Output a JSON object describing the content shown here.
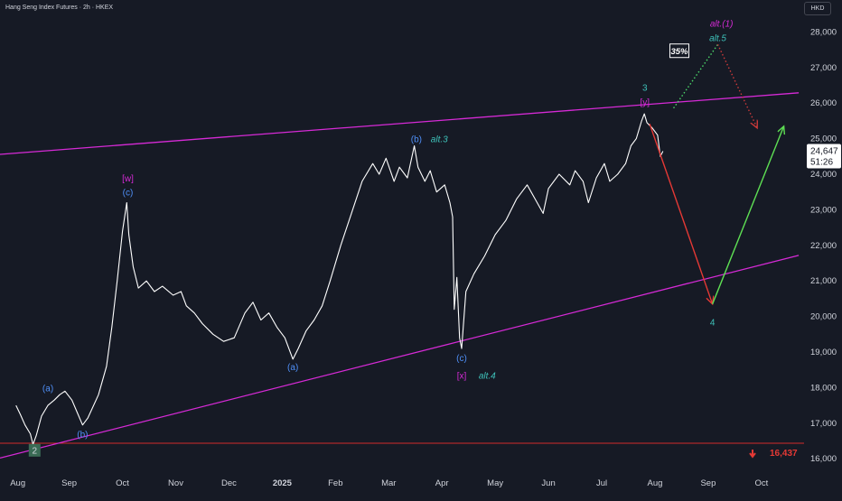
{
  "header": {
    "title": "Hang Seng Index Futures · 2h · HKEX",
    "currency": "HKD"
  },
  "chart_data": {
    "type": "line",
    "xlabel": "",
    "ylabel": "",
    "x_ticks": [
      {
        "label": "Aug",
        "month": 0
      },
      {
        "label": "Sep",
        "month": 1
      },
      {
        "label": "Oct",
        "month": 2
      },
      {
        "label": "Nov",
        "month": 3
      },
      {
        "label": "Dec",
        "month": 4
      },
      {
        "label": "2025",
        "month": 5,
        "bold": true
      },
      {
        "label": "Feb",
        "month": 6
      },
      {
        "label": "Mar",
        "month": 7
      },
      {
        "label": "Apr",
        "month": 8
      },
      {
        "label": "May",
        "month": 9
      },
      {
        "label": "Jun",
        "month": 10
      },
      {
        "label": "Jul",
        "month": 11
      },
      {
        "label": "Aug",
        "month": 12
      },
      {
        "label": "Sep",
        "month": 13
      },
      {
        "label": "Oct",
        "month": 14
      }
    ],
    "y_ticks": [
      16000,
      17000,
      18000,
      19000,
      20000,
      21000,
      22000,
      23000,
      24000,
      25000,
      26000,
      27000,
      28000
    ],
    "y_tick_labels": [
      "16,000",
      "17,000",
      "18,000",
      "19,000",
      "20,000",
      "21,000",
      "22,000",
      "23,000",
      "24,000",
      "25,000",
      "26,000",
      "27,000",
      "28,000"
    ],
    "ylim": [
      15700,
      28900
    ],
    "xlim": [
      -0.3,
      14.8
    ],
    "price": {
      "name": "",
      "points": [
        [
          0.0,
          17500
        ],
        [
          0.08,
          17250
        ],
        [
          0.17,
          16950
        ],
        [
          0.27,
          16700
        ],
        [
          0.32,
          16400
        ],
        [
          0.38,
          16650
        ],
        [
          0.48,
          17200
        ],
        [
          0.6,
          17500
        ],
        [
          0.72,
          17650
        ],
        [
          0.82,
          17800
        ],
        [
          0.92,
          17900
        ],
        [
          1.05,
          17650
        ],
        [
          1.15,
          17300
        ],
        [
          1.25,
          16950
        ],
        [
          1.35,
          17150
        ],
        [
          1.55,
          17800
        ],
        [
          1.7,
          18600
        ],
        [
          1.8,
          19700
        ],
        [
          1.9,
          21000
        ],
        [
          2.0,
          22400
        ],
        [
          2.08,
          23200
        ],
        [
          2.12,
          22300
        ],
        [
          2.2,
          21400
        ],
        [
          2.3,
          20800
        ],
        [
          2.45,
          21000
        ],
        [
          2.6,
          20700
        ],
        [
          2.75,
          20850
        ],
        [
          2.95,
          20600
        ],
        [
          3.1,
          20700
        ],
        [
          3.2,
          20300
        ],
        [
          3.35,
          20100
        ],
        [
          3.5,
          19800
        ],
        [
          3.7,
          19500
        ],
        [
          3.9,
          19300
        ],
        [
          4.1,
          19400
        ],
        [
          4.3,
          20100
        ],
        [
          4.45,
          20400
        ],
        [
          4.6,
          19900
        ],
        [
          4.75,
          20100
        ],
        [
          4.9,
          19700
        ],
        [
          5.05,
          19400
        ],
        [
          5.2,
          18800
        ],
        [
          5.3,
          19100
        ],
        [
          5.45,
          19600
        ],
        [
          5.6,
          19900
        ],
        [
          5.75,
          20300
        ],
        [
          5.9,
          21000
        ],
        [
          6.1,
          22000
        ],
        [
          6.3,
          22900
        ],
        [
          6.5,
          23800
        ],
        [
          6.7,
          24300
        ],
        [
          6.82,
          24000
        ],
        [
          6.95,
          24450
        ],
        [
          7.1,
          23800
        ],
        [
          7.2,
          24200
        ],
        [
          7.35,
          23900
        ],
        [
          7.48,
          24800
        ],
        [
          7.55,
          24200
        ],
        [
          7.68,
          23800
        ],
        [
          7.78,
          24100
        ],
        [
          7.9,
          23500
        ],
        [
          8.05,
          23700
        ],
        [
          8.15,
          23200
        ],
        [
          8.2,
          22800
        ],
        [
          8.23,
          20200
        ],
        [
          8.28,
          21100
        ],
        [
          8.33,
          19400
        ],
        [
          8.37,
          19100
        ],
        [
          8.45,
          20700
        ],
        [
          8.6,
          21200
        ],
        [
          8.8,
          21700
        ],
        [
          9.0,
          22300
        ],
        [
          9.2,
          22700
        ],
        [
          9.4,
          23300
        ],
        [
          9.6,
          23700
        ],
        [
          9.75,
          23300
        ],
        [
          9.9,
          22900
        ],
        [
          10.0,
          23600
        ],
        [
          10.2,
          24000
        ],
        [
          10.4,
          23700
        ],
        [
          10.5,
          24100
        ],
        [
          10.65,
          23800
        ],
        [
          10.75,
          23200
        ],
        [
          10.9,
          23900
        ],
        [
          11.05,
          24300
        ],
        [
          11.15,
          23800
        ],
        [
          11.3,
          24000
        ],
        [
          11.45,
          24300
        ],
        [
          11.55,
          24800
        ],
        [
          11.65,
          25000
        ],
        [
          11.75,
          25500
        ],
        [
          11.8,
          25700
        ],
        [
          11.85,
          25450
        ],
        [
          11.95,
          25300
        ],
        [
          12.05,
          25100
        ],
        [
          12.1,
          24500
        ],
        [
          12.15,
          24647
        ]
      ]
    },
    "channel_lines": [
      {
        "name": "upper-trendline",
        "color": "#d62ad6",
        "points": [
          [
            -0.3,
            24560
          ],
          [
            14.7,
            26290
          ]
        ]
      },
      {
        "name": "lower-trendline",
        "color": "#d62ad6",
        "points": [
          [
            -0.3,
            16020
          ],
          [
            14.7,
            21720
          ]
        ]
      }
    ],
    "horizontal_line": {
      "value": 16437,
      "color": "#d12b2b",
      "label": "16,437"
    },
    "projections": [
      {
        "name": "red-down-projection",
        "color": "#e53935",
        "style": "solid",
        "points": [
          [
            11.9,
            25420
          ],
          [
            13.08,
            20350
          ]
        ]
      },
      {
        "name": "green-up-projection",
        "color": "#5ee054",
        "style": "solid",
        "points": [
          [
            13.08,
            20350
          ],
          [
            14.42,
            25350
          ]
        ]
      },
      {
        "name": "green-dotted-alt",
        "color": "#4cd86a",
        "style": "dotted",
        "points": [
          [
            12.35,
            25860
          ],
          [
            13.18,
            27650
          ]
        ]
      },
      {
        "name": "red-dotted-alt",
        "color": "#cc3a3a",
        "style": "dotted",
        "points": [
          [
            13.18,
            27650
          ],
          [
            13.92,
            25300
          ]
        ]
      }
    ],
    "wave_labels": [
      {
        "text": "2",
        "x": 0.35,
        "y": 16250,
        "color": "#d1d4dc",
        "box": true
      },
      {
        "text": "(a)",
        "x": 0.6,
        "y": 18000,
        "color": "#4f8ff7"
      },
      {
        "text": "(b)",
        "x": 1.25,
        "y": 16700,
        "color": "#4f8ff7"
      },
      {
        "text": "[w]",
        "x": 2.1,
        "y": 23900,
        "color": "#d62ad6"
      },
      {
        "text": "(c)",
        "x": 2.1,
        "y": 23500,
        "color": "#4f8ff7"
      },
      {
        "text": "(a)",
        "x": 5.2,
        "y": 18600,
        "color": "#4f8ff7"
      },
      {
        "text": "(b)",
        "x": 7.52,
        "y": 25000,
        "color": "#4f8ff7"
      },
      {
        "text": "alt.3",
        "x": 7.95,
        "y": 25000,
        "color": "#3ec1b9",
        "italic": true
      },
      {
        "text": "(c)",
        "x": 8.37,
        "y": 18850,
        "color": "#4f8ff7"
      },
      {
        "text": "[x]",
        "x": 8.37,
        "y": 18350,
        "color": "#d62ad6"
      },
      {
        "text": "alt.4",
        "x": 8.85,
        "y": 18350,
        "color": "#3ec1b9",
        "italic": true
      },
      {
        "text": "3",
        "x": 11.81,
        "y": 26450,
        "color": "#3ec1b9"
      },
      {
        "text": "[y]",
        "x": 11.81,
        "y": 26050,
        "color": "#d62ad6"
      },
      {
        "text": "4",
        "x": 13.08,
        "y": 19850,
        "color": "#3ec1b9"
      },
      {
        "text": "alt.(1)",
        "x": 13.25,
        "y": 28250,
        "color": "#d62ad6",
        "italic": true
      },
      {
        "text": "alt.5",
        "x": 13.18,
        "y": 27850,
        "color": "#3ec1b9",
        "italic": true
      }
    ],
    "probability_badge": {
      "text": "35%",
      "x": 12.45,
      "y": 27460
    },
    "last_price": {
      "value": "24,647",
      "countdown": "51:26",
      "y": 24647
    }
  }
}
